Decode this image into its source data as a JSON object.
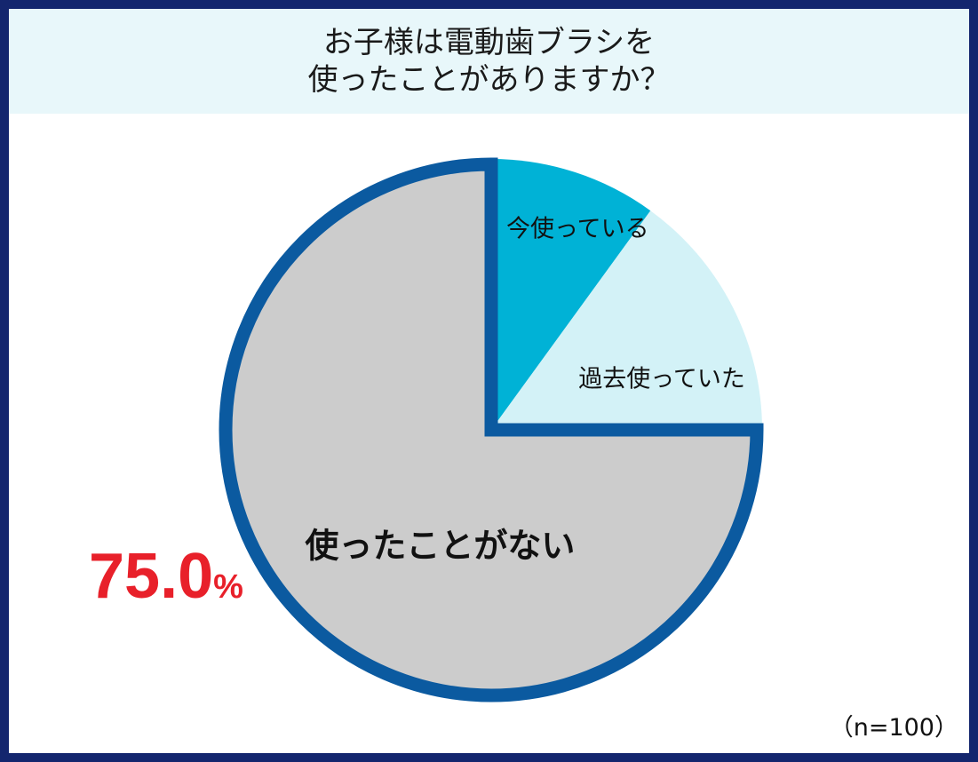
{
  "title": {
    "line1": "お子様は電動歯ブラシを",
    "line2": "使ったことがありますか？"
  },
  "sample": "（n=100）",
  "colors": {
    "frame": "#14266e",
    "title_band": "#e8f7fa",
    "current": "#00b2d6",
    "past": "#d3f2f7",
    "never": "#cccccc",
    "never_outline": "#0b5aa0",
    "percent": "#e8202a"
  },
  "chart_data": {
    "type": "pie",
    "start": "12 o'clock",
    "direction": "clockwise",
    "slices": [
      {
        "label": "今使っている",
        "value": 10.0,
        "color": "#00b2d6"
      },
      {
        "label": "過去使っていた",
        "value": 15.0,
        "color": "#d3f2f7"
      },
      {
        "label": "使ったことがない",
        "value": 75.0,
        "color": "#cccccc",
        "percent_label": "75.0",
        "percent_unit": "%"
      }
    ]
  }
}
